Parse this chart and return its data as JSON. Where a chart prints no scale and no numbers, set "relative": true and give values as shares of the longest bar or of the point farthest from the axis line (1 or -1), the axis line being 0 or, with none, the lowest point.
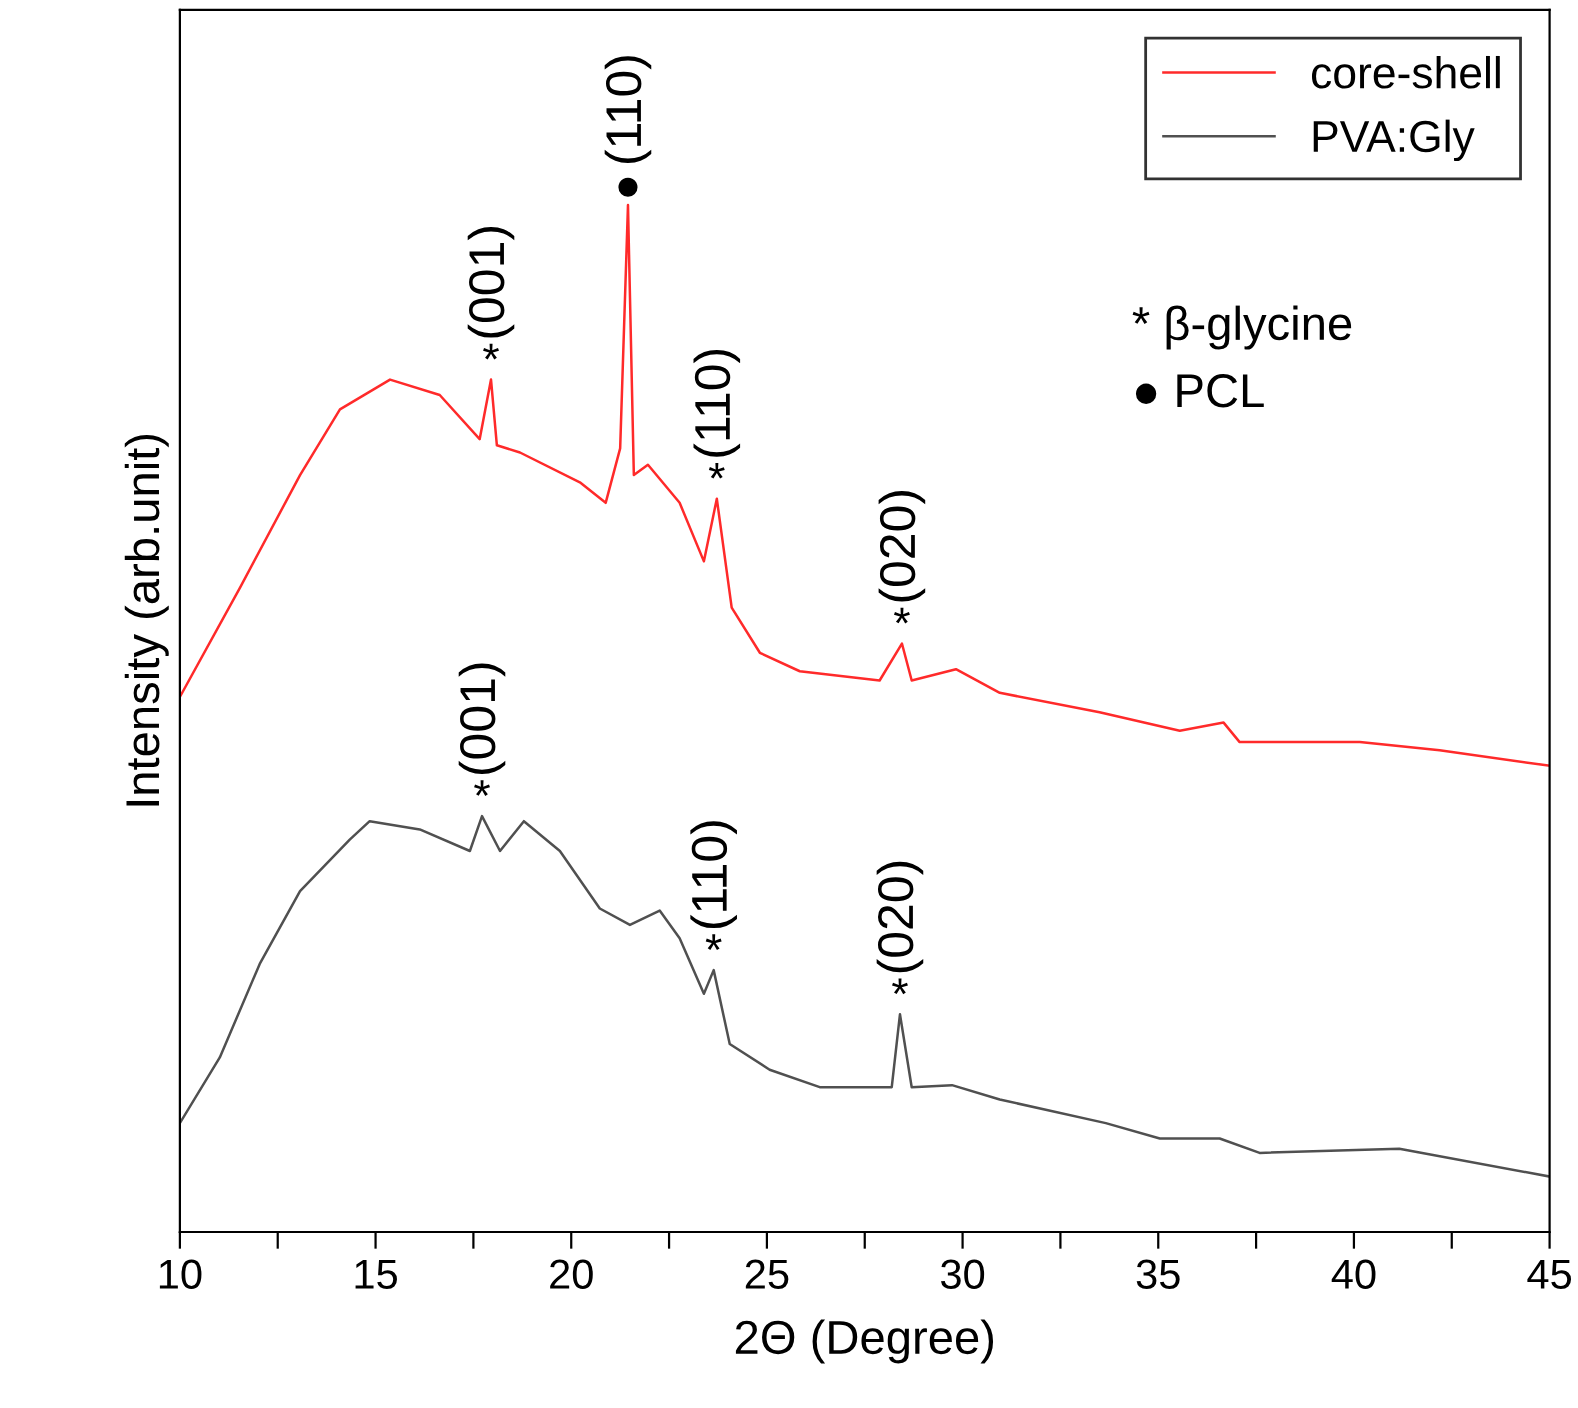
{
  "chart_data": {
    "type": "line",
    "relative": true,
    "xlabel": "2Θ (Degree)",
    "ylabel": "Intensity (arb.unit)",
    "xlim": [
      10,
      45
    ],
    "xticks": [
      10,
      {
        "value": 12.5,
        "label": null
      },
      15,
      {
        "value": 17.5,
        "label": null
      },
      20,
      {
        "value": 22.5,
        "label": null
      },
      25,
      {
        "value": 27.5,
        "label": null
      },
      30,
      {
        "value": 32.5,
        "label": null
      },
      35,
      {
        "value": 37.5,
        "label": null
      },
      40,
      {
        "value": 42.5,
        "label": null
      },
      45
    ],
    "legend": "top right",
    "grid": false,
    "marker": "none",
    "line_style": "solid",
    "series": [
      {
        "name": "core-shell",
        "color": "#ff2a2a",
        "x": [
          10,
          11.53,
          13.07,
          14.09,
          15.37,
          16.64,
          17.66,
          17.95,
          18.1,
          18.69,
          20.22,
          20.88,
          21.25,
          21.45,
          21.6,
          21.96,
          22.77,
          23.39,
          23.72,
          24.1,
          24.82,
          25.84,
          27.88,
          28.45,
          28.7,
          29.83,
          30.95,
          33.5,
          35.55,
          36.67,
          37.08,
          40.15,
          42.19,
          45
        ],
        "values": [
          0.521,
          0.627,
          0.737,
          0.801,
          0.83,
          0.815,
          0.772,
          0.83,
          0.766,
          0.759,
          0.73,
          0.71,
          0.763,
          1.0,
          0.737,
          0.747,
          0.71,
          0.653,
          0.714,
          0.608,
          0.564,
          0.546,
          0.537,
          0.573,
          0.537,
          0.548,
          0.525,
          0.506,
          0.488,
          0.496,
          0.477,
          0.477,
          0.469,
          0.454
        ]
      },
      {
        "name": "PVA:Gly",
        "color": "#505050",
        "x": [
          10,
          11.02,
          12.04,
          13.07,
          14.34,
          14.85,
          16.13,
          17.41,
          17.72,
          18.18,
          18.79,
          19.71,
          20.73,
          21.5,
          22.26,
          22.77,
          23.39,
          23.64,
          24.05,
          25.07,
          26.35,
          28.19,
          28.4,
          28.7,
          29.73,
          30.95,
          33.66,
          35.04,
          36.57,
          37.59,
          41.16,
          45
        ],
        "values": [
          0.106,
          0.17,
          0.261,
          0.332,
          0.382,
          0.4,
          0.392,
          0.371,
          0.405,
          0.371,
          0.4,
          0.371,
          0.315,
          0.299,
          0.313,
          0.286,
          0.232,
          0.255,
          0.183,
          0.158,
          0.141,
          0.141,
          0.212,
          0.141,
          0.143,
          0.129,
          0.106,
          0.091,
          0.091,
          0.077,
          0.081,
          0.054
        ]
      }
    ],
    "annotations": [
      {
        "text": "*",
        "x": 17.95,
        "y": 0.83
      },
      {
        "text": "(001)",
        "x": 17.95,
        "y": 0.83
      },
      {
        "text": "●",
        "x": 21.45,
        "y": 1.0
      },
      {
        "text": "(110)",
        "x": 21.45,
        "y": 1.0
      },
      {
        "text": "*",
        "x": 23.72,
        "y": 0.714
      },
      {
        "text": "(110)",
        "x": 23.72,
        "y": 0.714
      },
      {
        "text": "*",
        "x": 28.45,
        "y": 0.573
      },
      {
        "text": "(020)",
        "x": 28.45,
        "y": 0.573
      },
      {
        "text": "*",
        "x": 17.72,
        "y": 0.405
      },
      {
        "text": "(001)",
        "x": 17.72,
        "y": 0.405
      },
      {
        "text": "*",
        "x": 23.64,
        "y": 0.255
      },
      {
        "text": "(110)",
        "x": 23.64,
        "y": 0.255
      },
      {
        "text": "*",
        "x": 28.4,
        "y": 0.212
      },
      {
        "text": "(020)",
        "x": 28.4,
        "y": 0.212
      },
      "* β-glycine",
      "● PCL"
    ]
  }
}
